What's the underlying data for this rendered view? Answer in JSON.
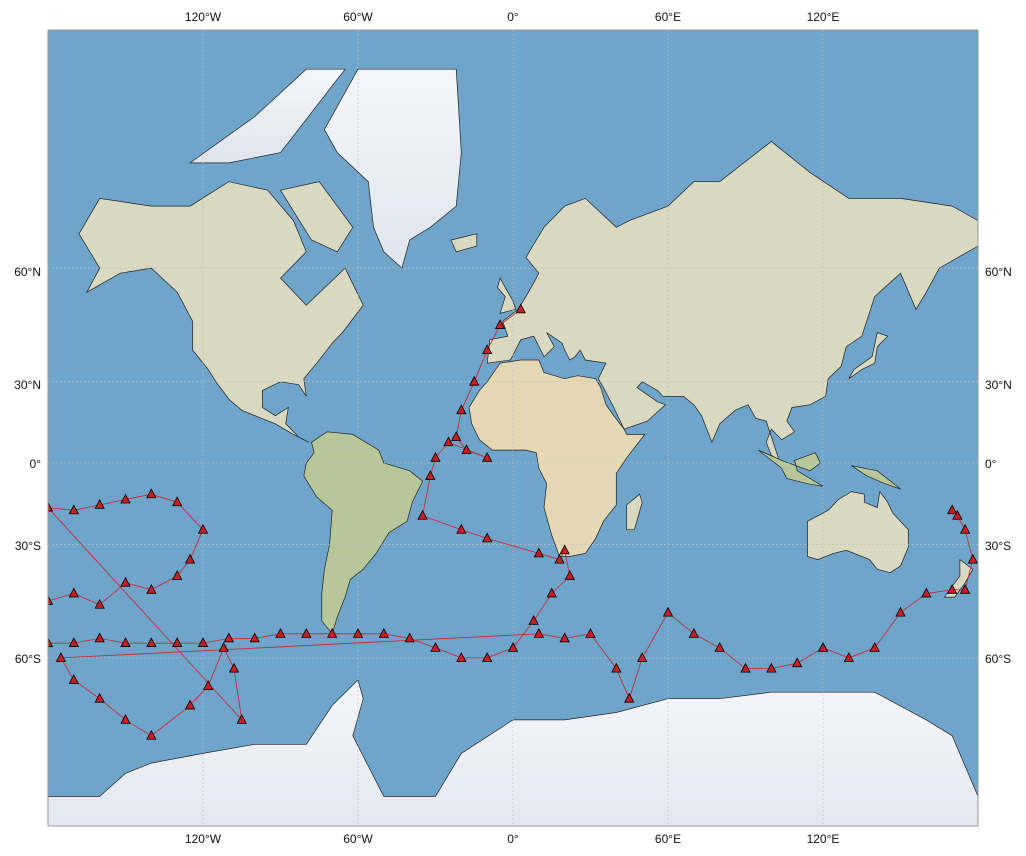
{
  "map": {
    "projection": "mercator",
    "lon_range": [
      -180,
      180
    ],
    "lat_range": [
      -82,
      82
    ],
    "gridlines": {
      "lon": [
        -120,
        -60,
        0,
        60,
        120
      ],
      "lat": [
        -60,
        -30,
        0,
        30,
        60
      ]
    },
    "colors": {
      "ocean": "#6fa4cb",
      "ocean_shallow": "#8dbbd9",
      "land": "#d9d8c0",
      "land_green": "#b7c79a",
      "land_desert": "#e3d7b4",
      "ice": "#eef1f6",
      "border": "#222222",
      "track": "#d0202a",
      "marker_fill": "#c81e24",
      "marker_edge": "#000000"
    }
  },
  "axes": {
    "top_ticks": [
      "120°W",
      "60°W",
      "0°",
      "60°E",
      "120°E"
    ],
    "bottom_ticks": [
      "120°W",
      "60°W",
      "0°",
      "60°E",
      "120°E"
    ],
    "left_ticks": [
      "60°N",
      "30°N",
      "0°",
      "30°S",
      "60°S"
    ],
    "right_ticks": [
      "60°N",
      "30°N",
      "0°",
      "30°S",
      "60°S"
    ]
  },
  "chart_data": {
    "type": "scatter",
    "description": "station track",
    "series": [
      {
        "points": [
          [
            3,
            51
          ],
          [
            -5,
            47
          ],
          [
            -10,
            40
          ],
          [
            -15,
            30
          ],
          [
            -20,
            20
          ],
          [
            -22,
            10
          ],
          [
            -18,
            5
          ],
          [
            -10,
            2
          ],
          [
            -25,
            8
          ],
          [
            -30,
            2
          ],
          [
            -32,
            -5
          ],
          [
            -35,
            -20
          ],
          [
            -20,
            -25
          ],
          [
            -10,
            -28
          ],
          [
            10,
            -33
          ],
          [
            18,
            -35
          ],
          [
            20,
            -32
          ],
          [
            22,
            -40
          ],
          [
            15,
            -45
          ],
          [
            8,
            -52
          ],
          [
            0,
            -58
          ],
          [
            -10,
            -60
          ],
          [
            -20,
            -60
          ],
          [
            -30,
            -58
          ],
          [
            -40,
            -56
          ],
          [
            -50,
            -55
          ],
          [
            -60,
            -55
          ],
          [
            -70,
            -55
          ],
          [
            -80,
            -55
          ],
          [
            -90,
            -55
          ],
          [
            -100,
            -56
          ],
          [
            -110,
            -56
          ],
          [
            -120,
            -57
          ],
          [
            -130,
            -57
          ],
          [
            -140,
            -57
          ],
          [
            -150,
            -57
          ],
          [
            -160,
            -56
          ],
          [
            -170,
            -57
          ],
          [
            -180,
            -57
          ],
          [
            -180,
            -47
          ],
          [
            -170,
            -45
          ],
          [
            -160,
            -48
          ],
          [
            -150,
            -42
          ],
          [
            -140,
            -44
          ],
          [
            -130,
            -40
          ],
          [
            -125,
            -35
          ],
          [
            -120,
            -25
          ],
          [
            -130,
            -15
          ],
          [
            -140,
            -12
          ],
          [
            -150,
            -14
          ],
          [
            -160,
            -16
          ],
          [
            -170,
            -18
          ],
          [
            -180,
            -17
          ],
          [
            -105,
            -70
          ],
          [
            -108,
            -62
          ],
          [
            -112,
            -58
          ],
          [
            -118,
            -65
          ],
          [
            -125,
            -68
          ],
          [
            -140,
            -72
          ],
          [
            -150,
            -70
          ],
          [
            -160,
            -67
          ],
          [
            -170,
            -64
          ],
          [
            -175,
            -60
          ],
          [
            10,
            -55
          ],
          [
            20,
            -56
          ],
          [
            30,
            -55
          ],
          [
            40,
            -62
          ],
          [
            45,
            -67
          ],
          [
            50,
            -60
          ],
          [
            60,
            -50
          ],
          [
            70,
            -55
          ],
          [
            80,
            -58
          ],
          [
            90,
            -62
          ],
          [
            100,
            -62
          ],
          [
            110,
            -61
          ],
          [
            120,
            -58
          ],
          [
            130,
            -60
          ],
          [
            140,
            -58
          ],
          [
            150,
            -50
          ],
          [
            160,
            -45
          ],
          [
            170,
            -44
          ],
          [
            175,
            -44
          ],
          [
            178,
            -35
          ],
          [
            175,
            -25
          ],
          [
            172,
            -20
          ],
          [
            170,
            -18
          ]
        ]
      }
    ]
  }
}
